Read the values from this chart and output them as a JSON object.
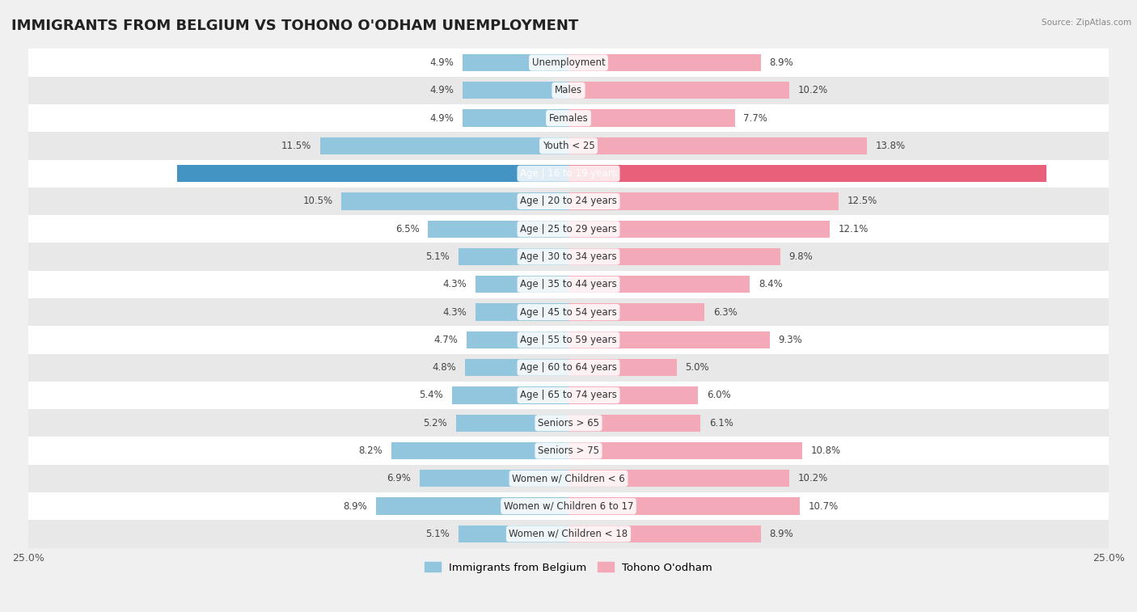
{
  "title": "IMMIGRANTS FROM BELGIUM VS TOHONO O'ODHAM UNEMPLOYMENT",
  "source": "Source: ZipAtlas.com",
  "categories": [
    "Unemployment",
    "Males",
    "Females",
    "Youth < 25",
    "Age | 16 to 19 years",
    "Age | 20 to 24 years",
    "Age | 25 to 29 years",
    "Age | 30 to 34 years",
    "Age | 35 to 44 years",
    "Age | 45 to 54 years",
    "Age | 55 to 59 years",
    "Age | 60 to 64 years",
    "Age | 65 to 74 years",
    "Seniors > 65",
    "Seniors > 75",
    "Women w/ Children < 6",
    "Women w/ Children 6 to 17",
    "Women w/ Children < 18"
  ],
  "left_values": [
    4.9,
    4.9,
    4.9,
    11.5,
    18.1,
    10.5,
    6.5,
    5.1,
    4.3,
    4.3,
    4.7,
    4.8,
    5.4,
    5.2,
    8.2,
    6.9,
    8.9,
    5.1
  ],
  "right_values": [
    8.9,
    10.2,
    7.7,
    13.8,
    22.1,
    12.5,
    12.1,
    9.8,
    8.4,
    6.3,
    9.3,
    5.0,
    6.0,
    6.1,
    10.8,
    10.2,
    10.7,
    8.9
  ],
  "left_color": "#92c5de",
  "right_color": "#f4a9b8",
  "left_highlight_color": "#4393c3",
  "right_highlight_color": "#e8607a",
  "highlight_row": 4,
  "left_label": "Immigrants from Belgium",
  "right_label": "Tohono O'odham",
  "xlim": 25.0,
  "background_color": "#f0f0f0",
  "row_bg_white": "#ffffff",
  "row_bg_gray": "#e8e8e8",
  "title_fontsize": 13,
  "label_fontsize": 8.5,
  "value_fontsize": 8.5
}
